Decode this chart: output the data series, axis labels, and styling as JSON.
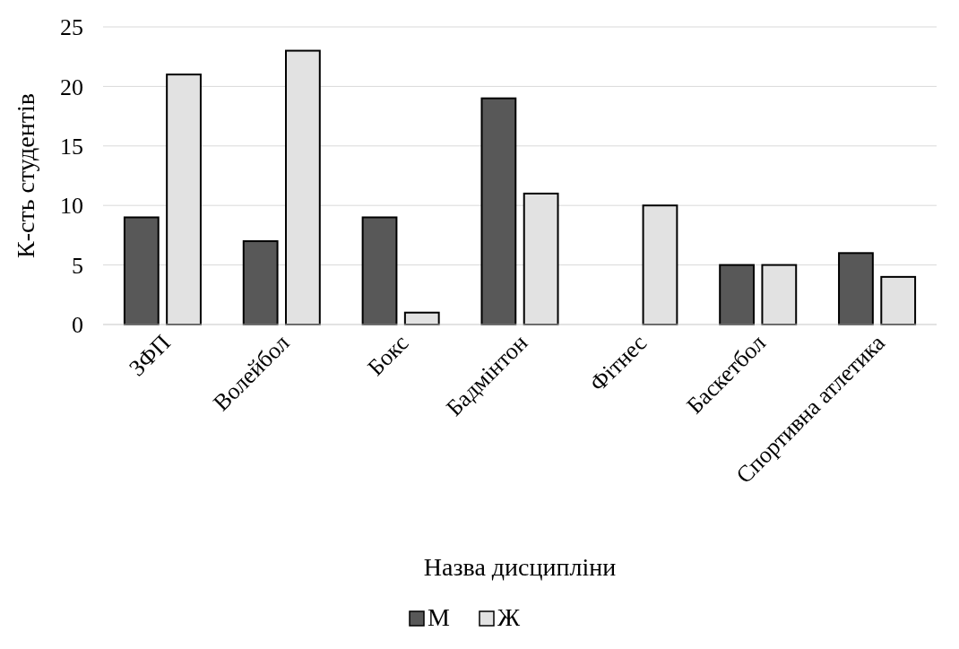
{
  "chart_data": {
    "type": "bar",
    "xlabel": "Назва дисципліни",
    "ylabel": "К-сть студентів",
    "categories": [
      "ЗФП",
      "Волейбол",
      "Бокс",
      "Бадмінтон",
      "Фітнес",
      "Баскетбол",
      "Спортивна атлетика"
    ],
    "series": [
      {
        "name": "М",
        "color": "#585858",
        "values": [
          9,
          7,
          9,
          19,
          0,
          5,
          6
        ]
      },
      {
        "name": "Ж",
        "color": "#e2e2e2",
        "values": [
          21,
          23,
          1,
          11,
          10,
          5,
          4
        ]
      }
    ],
    "ylim": [
      0,
      25
    ],
    "yticks": [
      0,
      5,
      10,
      15,
      20,
      25
    ],
    "grid": "y",
    "legend": "bottom"
  }
}
